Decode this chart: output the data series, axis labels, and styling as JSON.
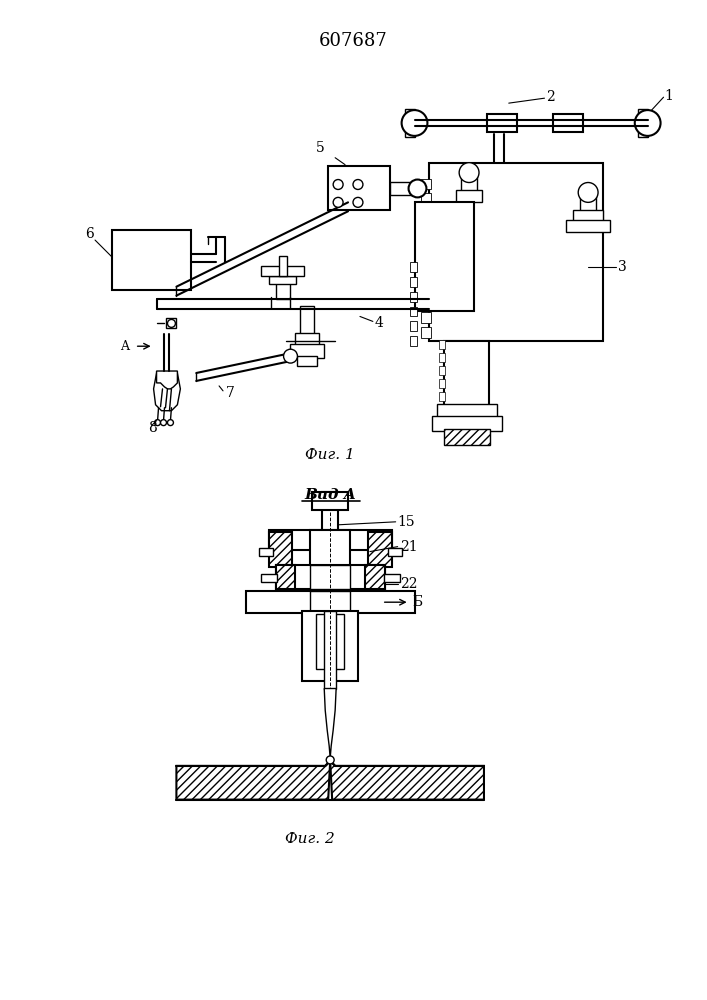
{
  "title": "607687",
  "fig1_label": "Фиг. 1",
  "fig2_label": "Фиг. 2",
  "vid_a_label": "Вид A",
  "bg_color": "#ffffff"
}
